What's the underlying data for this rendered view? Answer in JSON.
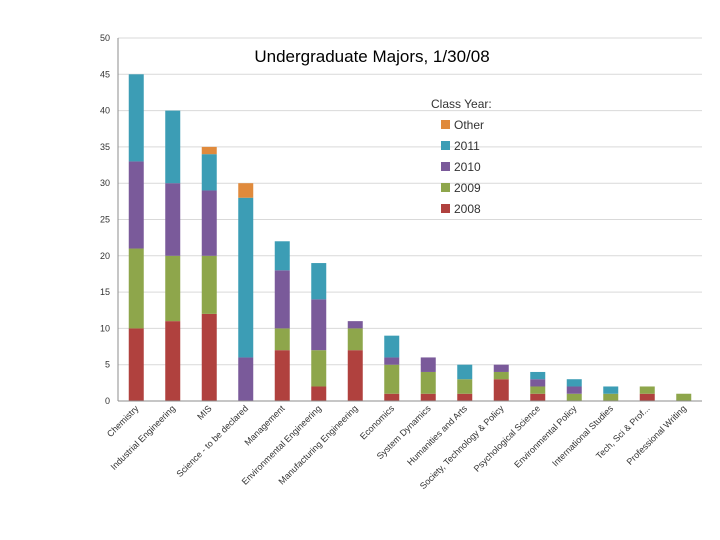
{
  "chart_data": {
    "type": "bar",
    "stacked": true,
    "title": "Undergraduate Majors, 1/30/08",
    "xlabel": "",
    "ylabel": "",
    "ylim": [
      0,
      50
    ],
    "yticks": [
      0,
      5,
      10,
      15,
      20,
      25,
      30,
      35,
      40,
      45,
      50
    ],
    "grid": true,
    "legend_title": "Class Year:",
    "legend_position": "top-right",
    "categories": [
      "Chemistry",
      "Industrial Engineering",
      "MIS",
      "Science - to be declared",
      "Management",
      "Environmental Engineering",
      "Manufacturing Engineering",
      "Economics",
      "System Dynamics",
      "Humanities and Arts",
      "Society, Technology & Policy",
      "Psychological Science",
      "Environmental Policy",
      "International Studies",
      "Tech, Sci & Prof...",
      "Professional Writing"
    ],
    "series": [
      {
        "name": "2008",
        "color": "#b0413e",
        "values": [
          10,
          11,
          12,
          0,
          7,
          2,
          7,
          1,
          1,
          1,
          3,
          1,
          0,
          0,
          1,
          0
        ]
      },
      {
        "name": "2009",
        "color": "#8ea64b",
        "values": [
          11,
          9,
          8,
          0,
          3,
          5,
          3,
          4,
          3,
          2,
          1,
          1,
          1,
          1,
          1,
          1
        ]
      },
      {
        "name": "2010",
        "color": "#7a5a9a",
        "values": [
          12,
          10,
          9,
          6,
          8,
          7,
          1,
          1,
          2,
          0,
          1,
          1,
          1,
          0,
          0,
          0
        ]
      },
      {
        "name": "2011",
        "color": "#3c9db5",
        "values": [
          12,
          10,
          5,
          22,
          4,
          5,
          0,
          3,
          0,
          2,
          0,
          1,
          1,
          1,
          0,
          0
        ]
      },
      {
        "name": "Other",
        "color": "#e08a3c",
        "values": [
          0,
          0,
          1,
          2,
          0,
          0,
          0,
          0,
          0,
          0,
          0,
          0,
          0,
          0,
          0,
          0
        ]
      }
    ],
    "legend_order": [
      "Other",
      "2011",
      "2010",
      "2009",
      "2008"
    ]
  }
}
